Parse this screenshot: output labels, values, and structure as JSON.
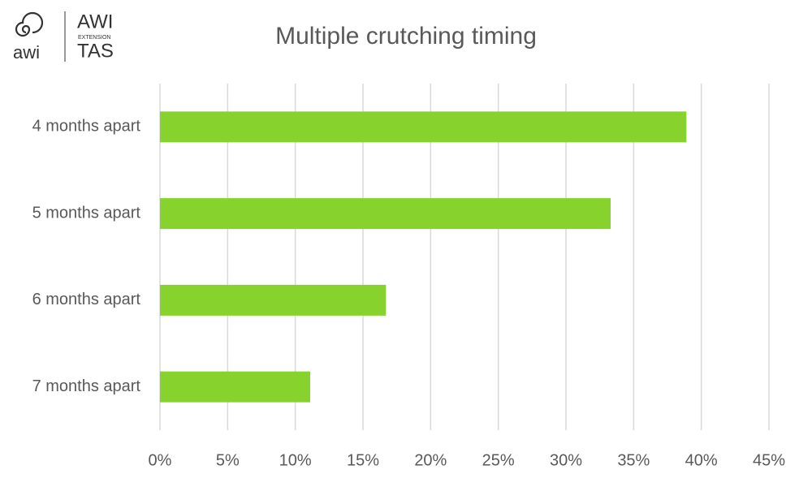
{
  "logo": {
    "mark": "awi",
    "name": "AWI",
    "sub": "EXTENSION",
    "region": "TAS"
  },
  "chart_data": {
    "type": "bar",
    "orientation": "horizontal",
    "title": "Multiple crutching timing",
    "categories": [
      "4 months apart",
      "5 months apart",
      "6 months apart",
      "7 months apart"
    ],
    "values": [
      38.9,
      33.3,
      16.7,
      11.1
    ],
    "color": "#88d22e",
    "xlim": [
      0,
      45
    ],
    "xticks": [
      {
        "value": 0,
        "label": "0%"
      },
      {
        "value": 5,
        "label": "5%"
      },
      {
        "value": 10,
        "label": "10%"
      },
      {
        "value": 15,
        "label": "15%"
      },
      {
        "value": 20,
        "label": "20%"
      },
      {
        "value": 25,
        "label": "25%"
      },
      {
        "value": 30,
        "label": "30%"
      },
      {
        "value": 35,
        "label": "35%"
      },
      {
        "value": 40,
        "label": "40%"
      },
      {
        "value": 45,
        "label": "45%"
      }
    ],
    "grid": true
  }
}
